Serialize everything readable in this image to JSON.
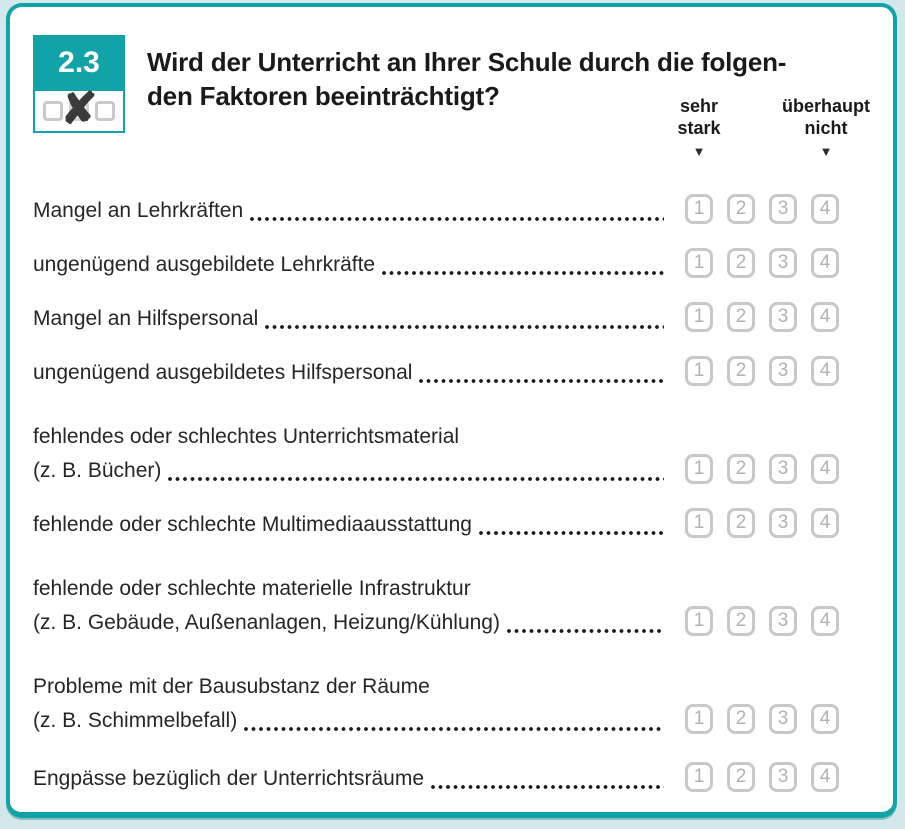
{
  "page": {
    "accent_color": "#12a3a8",
    "background_color": "#d2e8eb",
    "box_border_color": "#c8c8c8",
    "box_number_color": "#b2b2b2"
  },
  "question": {
    "number": "2.3",
    "title_lines": {
      "line1": "Wird der Unterricht an Ihrer Schule durch die folgen-",
      "line2": "den Faktoren beeinträchtigt?"
    },
    "scale": {
      "left_label_line1": "sehr",
      "left_label_line2": "stark",
      "right_label_line1": "überhaupt",
      "right_label_line2": "nicht",
      "arrow_glyph": "▼",
      "options": [
        "1",
        "2",
        "3",
        "4"
      ]
    },
    "items": [
      {
        "lines": [
          "Mangel an Lehrkräften"
        ]
      },
      {
        "lines": [
          "ungenügend ausgebildete Lehrkräfte"
        ]
      },
      {
        "lines": [
          "Mangel an Hilfspersonal"
        ]
      },
      {
        "lines": [
          "ungenügend ausgebildetes Hilfspersonal"
        ]
      },
      {
        "lines": [
          "fehlendes oder schlechtes Unterrichtsmaterial",
          "(z. B. Bücher)"
        ]
      },
      {
        "lines": [
          "fehlende oder schlechte Multimediaausstattung"
        ]
      },
      {
        "lines": [
          "fehlende oder schlechte materielle Infrastruktur",
          "(z. B. Gebäude, Außenanlagen, Heizung/Kühlung)"
        ]
      },
      {
        "lines": [
          "Probleme mit der Bausubstanz der Räume",
          "(z. B. Schimmelbefall)"
        ]
      },
      {
        "lines": [
          "Engpässe bezüglich der Unterrichtsräume"
        ]
      }
    ]
  },
  "badge": {
    "cross_glyph": "✘"
  }
}
